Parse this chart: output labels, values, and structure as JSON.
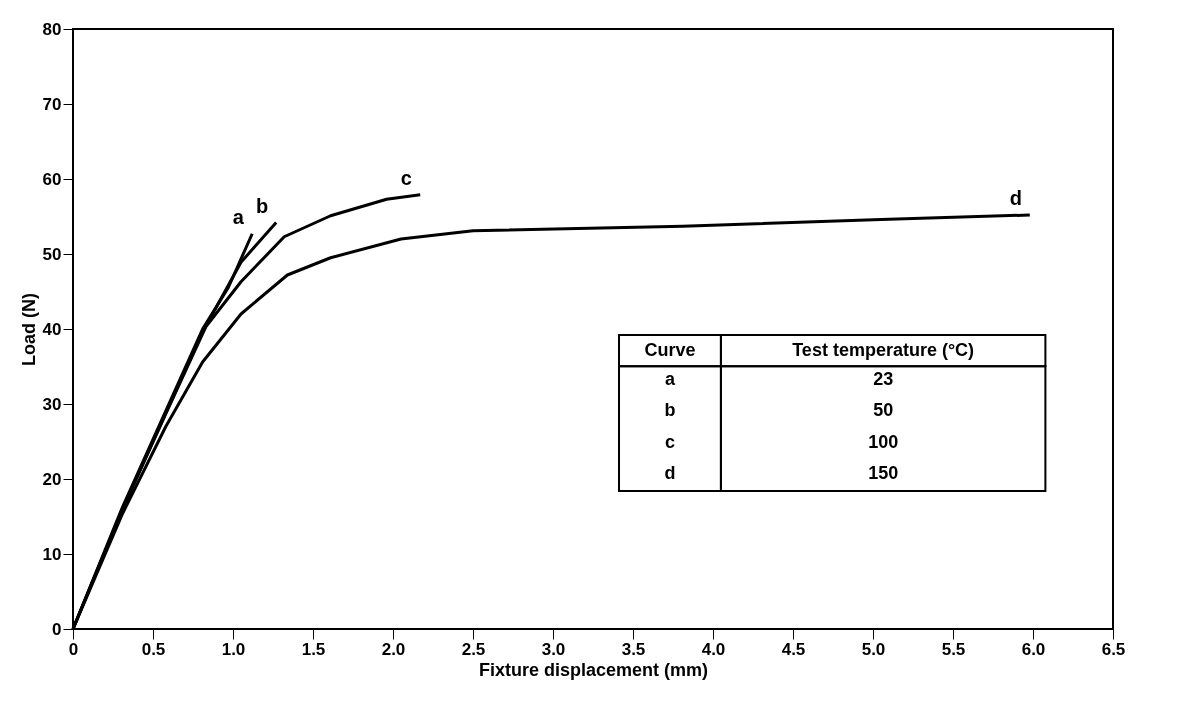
{
  "chart_data": {
    "type": "line",
    "xlabel": "Fixture displacement (mm)",
    "ylabel": "Load (N)",
    "xlim": [
      0,
      6.5
    ],
    "ylim": [
      0,
      80
    ],
    "xticks": [
      0,
      0.5,
      {
        "value": 1,
        "label": "1.0"
      },
      1.5,
      {
        "value": 2,
        "label": "2.0"
      },
      2.5,
      {
        "value": 3,
        "label": "3.0"
      },
      3.5,
      {
        "value": 4,
        "label": "4.0"
      },
      4.5,
      {
        "value": 5,
        "label": "5.0"
      },
      5.5,
      {
        "value": 6,
        "label": "6.0"
      },
      6.5
    ],
    "yticks": [
      0,
      10,
      20,
      30,
      40,
      50,
      60,
      70,
      80
    ],
    "grid": false,
    "legend": false,
    "marker": "none",
    "line_style": "solid",
    "annotations": [
      "Curve",
      "Test temperature (°C)",
      "23",
      "50",
      "100",
      "150"
    ],
    "series": [
      {
        "name": "a",
        "color": "#000000",
        "x": [
          0,
          0.31,
          0.81,
          0.97,
          1.12
        ],
        "values": [
          0,
          16.3,
          40,
          45.5,
          52.7
        ]
      },
      {
        "name": "b",
        "color": "#000000",
        "x": [
          0,
          0.31,
          0.81,
          1.05,
          1.27
        ],
        "values": [
          0,
          16,
          39.6,
          48.9,
          54.2
        ]
      },
      {
        "name": "c",
        "color": "#000000",
        "x": [
          0,
          0.31,
          0.58,
          0.83,
          1.05,
          1.32,
          1.61,
          1.96,
          2.17
        ],
        "values": [
          0,
          16,
          28.7,
          40.3,
          46.3,
          52.3,
          55.1,
          57.3,
          57.9
        ]
      },
      {
        "name": "d",
        "color": "#000000",
        "x": [
          0,
          0.31,
          0.58,
          0.81,
          1.05,
          1.34,
          1.61,
          2.05,
          2.5,
          3.81,
          5.05,
          5.98
        ],
        "values": [
          0,
          15.4,
          27,
          35.6,
          42,
          47.2,
          49.5,
          52,
          53.1,
          53.7,
          54.6,
          55.2
        ]
      }
    ]
  }
}
